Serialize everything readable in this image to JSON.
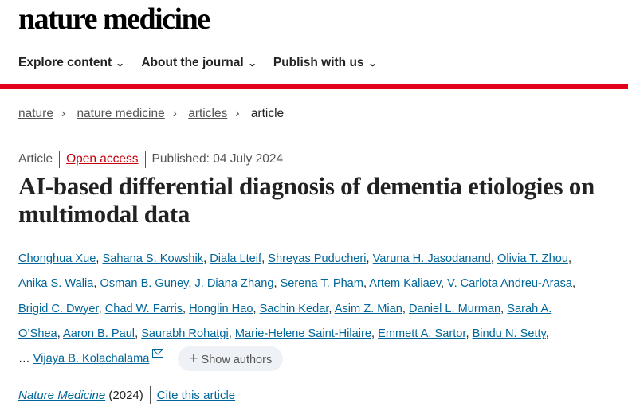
{
  "header": {
    "logo": "nature medicine",
    "nav": [
      {
        "label": "Explore content"
      },
      {
        "label": "About the journal"
      },
      {
        "label": "Publish with us"
      }
    ]
  },
  "breadcrumb": [
    "nature",
    "nature medicine",
    "articles",
    "article"
  ],
  "meta": {
    "type": "Article",
    "access": "Open access",
    "published": "Published: 04 July 2024"
  },
  "title": "AI-based differential diagnosis of dementia etiologies on multimodal data",
  "authors": {
    "lines": [
      [
        "Chonghua Xue",
        "Sahana S. Kowshik",
        "Diala Lteif",
        "Shreyas Puducheri",
        "Varuna H. Jasodanand",
        "Olivia T. Zhou"
      ],
      [
        "Anika S. Walia",
        "Osman B. Guney",
        "J. Diana Zhang",
        "Serena T. Pham",
        "Artem Kaliaev",
        "V. Carlota Andreu-Arasa"
      ],
      [
        "Brigid C. Dwyer",
        "Chad W. Farris",
        "Honglin Hao",
        "Sachin Kedar",
        "Asim Z. Mian",
        "Daniel L. Murman",
        "Sarah A."
      ],
      [
        "O’Shea",
        "Aaron B. Paul",
        "Saurabh Rohatgi",
        "Marie-Helene Saint-Hilaire",
        "Emmett A. Sartor",
        "Bindu N. Setty"
      ]
    ],
    "ellipsis": "…",
    "last_author": "Vijaya B. Kolachalama",
    "show_authors": "Show authors"
  },
  "citation": {
    "journal": "Nature Medicine",
    "year": "(2024)",
    "cite_label": "Cite this article"
  }
}
